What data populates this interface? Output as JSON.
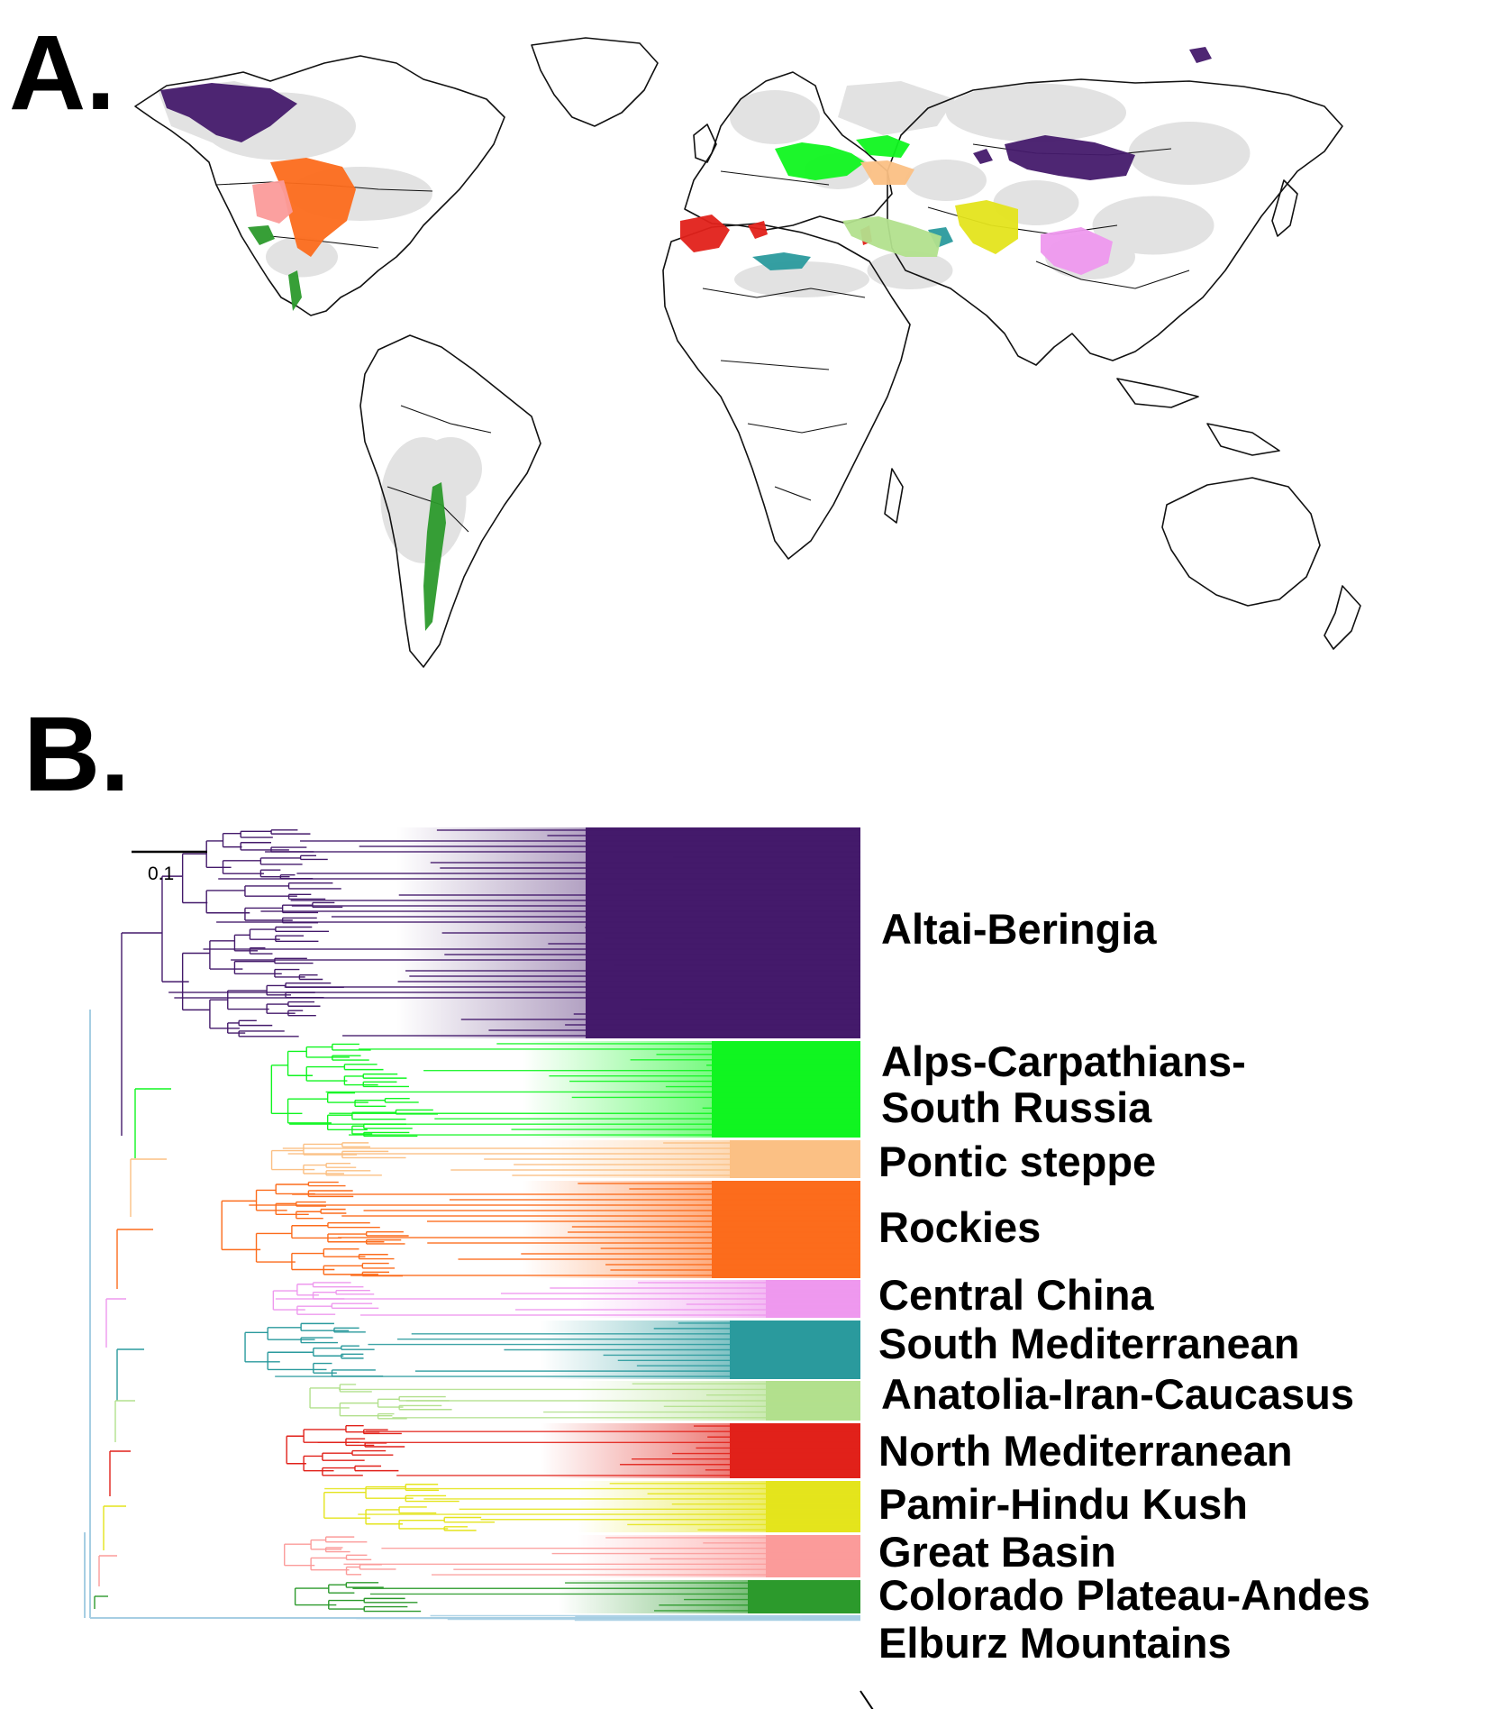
{
  "panels": {
    "a_label": "A.",
    "b_label": "B."
  },
  "scale_bar": {
    "label": "0.1"
  },
  "clades": [
    {
      "id": "altai-beringia",
      "label": "Altai-Beringia",
      "color": "#441a6b"
    },
    {
      "id": "alps-carpathians",
      "label": "Alps-Carpathians-\nSouth Russia",
      "color": "#10f520"
    },
    {
      "id": "pontic-steppe",
      "label": "Pontic steppe",
      "color": "#fbc084"
    },
    {
      "id": "rockies",
      "label": "Rockies",
      "color": "#fc6c1c"
    },
    {
      "id": "central-china",
      "label": "Central China",
      "color": "#ee98ee"
    },
    {
      "id": "south-mediterranean",
      "label": "South Mediterranean",
      "color": "#2a9a9d"
    },
    {
      "id": "anatolia-iran-caucasus",
      "label": "Anatolia-Iran-Caucasus",
      "color": "#b2e08d"
    },
    {
      "id": "north-mediterranean",
      "label": "North Mediterranean",
      "color": "#e1211a"
    },
    {
      "id": "pamir-hindu-kush",
      "label": "Pamir-Hindu Kush",
      "color": "#e4e41c"
    },
    {
      "id": "great-basin",
      "label": "Great Basin",
      "color": "#fb9b9a"
    },
    {
      "id": "colorado-plateau-andes",
      "label": "Colorado Plateau-Andes",
      "color": "#2c9a2c"
    },
    {
      "id": "elburz-mountains",
      "label": "Elburz Mountains",
      "color": "#a6cee3"
    }
  ],
  "map_colors": {
    "land_range": "#e2e2e2",
    "outline": "#111111"
  }
}
